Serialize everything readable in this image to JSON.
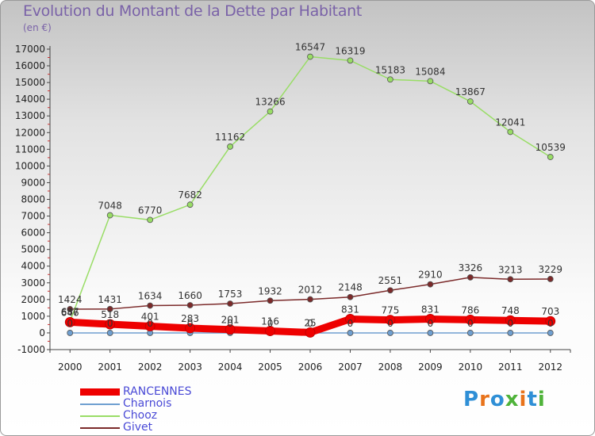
{
  "chart_data": {
    "type": "line",
    "title": "Evolution du Montant de la Dette par Habitant",
    "subtitle": "(en €)",
    "x": [
      "2000",
      "2001",
      "2002",
      "2003",
      "2004",
      "2005",
      "2006",
      "2007",
      "2008",
      "2009",
      "2010",
      "2011",
      "2012"
    ],
    "ylim": [
      -1000,
      17000
    ],
    "yticks": [
      -1000,
      0,
      1000,
      2000,
      3000,
      4000,
      5000,
      6000,
      7000,
      8000,
      9000,
      10000,
      11000,
      12000,
      13000,
      14000,
      15000,
      16000,
      17000
    ],
    "grid": false,
    "legend_position": "bottom-left",
    "series": [
      {
        "name": "RANCENNES",
        "color": "#ee0000",
        "values": [
          646,
          518,
          401,
          283,
          201,
          116,
          25,
          831,
          775,
          831,
          786,
          748,
          703
        ],
        "labels": [
          "646",
          "518",
          "401",
          "283",
          "201",
          "116",
          "25",
          "831",
          "775",
          "831",
          "786",
          "748",
          "703"
        ]
      },
      {
        "name": "Charnois",
        "color": "#6f9fd0",
        "values": [
          0,
          0,
          0,
          0,
          0,
          0,
          0,
          0,
          0,
          0,
          0,
          0,
          0
        ],
        "labels": [
          "0",
          "0",
          "0",
          "0",
          "0",
          "0",
          "0",
          "0",
          "0",
          "0",
          "0",
          "0",
          "0"
        ]
      },
      {
        "name": "Chooz",
        "color": "#99dd66",
        "values": [
          687,
          7048,
          6770,
          7682,
          11162,
          13266,
          16547,
          16319,
          15183,
          15084,
          13867,
          12041,
          10539
        ],
        "labels": [
          "687",
          "7048",
          "6770",
          "7682",
          "11162",
          "13266",
          "16547",
          "16319",
          "15183",
          "15084",
          "13867",
          "12041",
          "10539"
        ]
      },
      {
        "name": "Givet",
        "color": "#7b2a2a",
        "values": [
          1424,
          1431,
          1634,
          1660,
          1753,
          1932,
          2012,
          2148,
          2551,
          2910,
          3326,
          3213,
          3229
        ],
        "labels": [
          "1424",
          "1431",
          "1634",
          "1660",
          "1753",
          "1932",
          "2012",
          "2148",
          "2551",
          "2910",
          "3326",
          "3213",
          "3229"
        ]
      }
    ]
  },
  "logo": {
    "text": "Proxiti",
    "colors": [
      "#2f8fd6",
      "#e8731b",
      "#2f8fd6",
      "#4fb33a",
      "#e8731b",
      "#2f8fd6",
      "#4fb33a"
    ]
  }
}
